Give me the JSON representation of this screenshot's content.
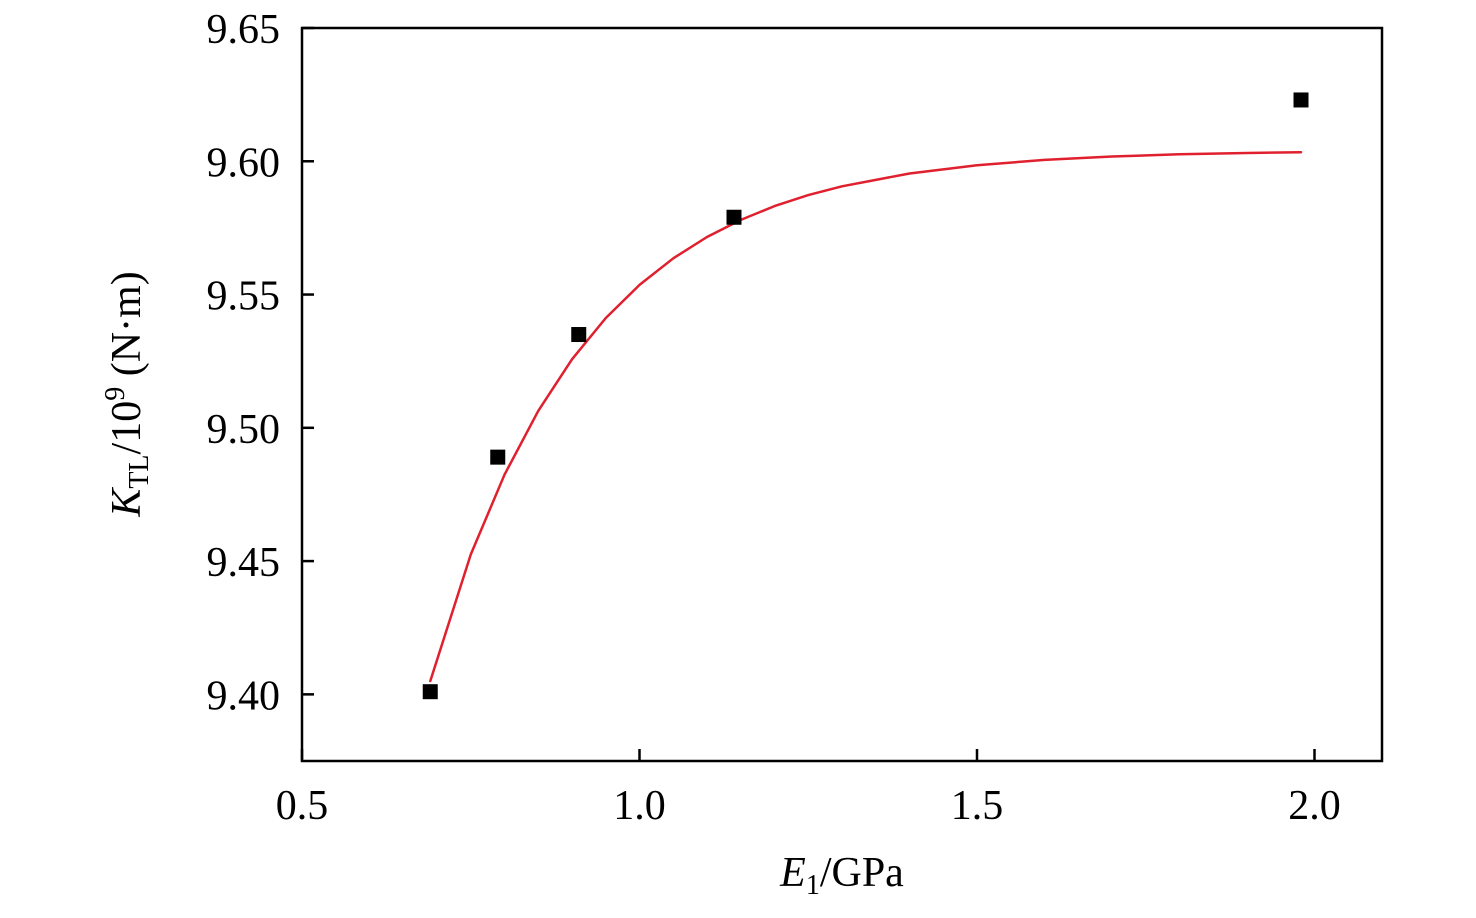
{
  "chart_data": {
    "type": "scatter",
    "xlabel": {
      "symbol": "E",
      "subscript": "1",
      "unit": "/GPa"
    },
    "ylabel": {
      "symbol": "K",
      "subscript": "TL",
      "scale_prefix": "/10",
      "scale_exponent": "9",
      "unit": " (N·m)"
    },
    "xlim": [
      0.5,
      2.1
    ],
    "ylim": [
      9.375,
      9.65
    ],
    "x_ticks": [
      0.5,
      1.0,
      1.5,
      2.0
    ],
    "x_tick_labels": [
      "0.5",
      "1.0",
      "1.5",
      "2.0"
    ],
    "y_ticks": [
      9.4,
      9.45,
      9.5,
      9.55,
      9.6,
      9.65
    ],
    "y_tick_labels": [
      "9.40",
      "9.45",
      "9.50",
      "9.55",
      "9.60",
      "9.65"
    ],
    "grid": false,
    "legend": "none",
    "series": [
      {
        "kind": "markers",
        "marker": "square",
        "color": "#000000",
        "x": [
          0.69,
          0.79,
          0.91,
          1.14,
          1.98
        ],
        "y": [
          9.401,
          9.489,
          9.535,
          9.579,
          9.623
        ]
      },
      {
        "kind": "fit-line",
        "color": "#e0202e",
        "x": [
          0.69,
          0.75,
          0.8,
          0.85,
          0.9,
          0.95,
          1.0,
          1.05,
          1.1,
          1.15,
          1.2,
          1.25,
          1.3,
          1.4,
          1.5,
          1.6,
          1.7,
          1.8,
          1.9,
          1.98
        ],
        "y": [
          9.405,
          9.4525,
          9.4824,
          9.5064,
          9.5257,
          9.5412,
          9.5536,
          9.5636,
          9.5716,
          9.578,
          9.5832,
          9.5873,
          9.5906,
          9.5954,
          9.5985,
          9.6005,
          9.6018,
          9.6026,
          9.6031,
          9.6034
        ]
      }
    ]
  }
}
